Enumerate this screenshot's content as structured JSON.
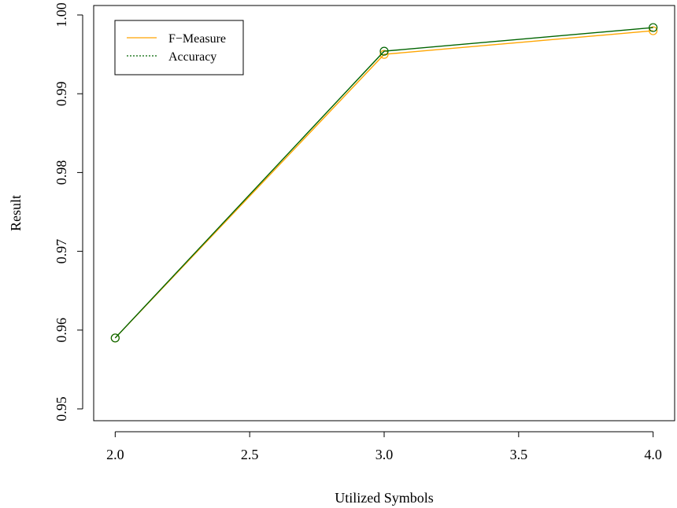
{
  "chart_data": {
    "type": "line",
    "title": "",
    "xlabel": "Utilized Symbols",
    "ylabel": "Result",
    "x": [
      2,
      3,
      4
    ],
    "xlim": [
      1.92,
      4.08
    ],
    "ylim": [
      0.9485,
      1.0012
    ],
    "xticks": [
      2.0,
      2.5,
      3.0,
      3.5,
      4.0
    ],
    "xtick_labels": [
      "2.0",
      "2.5",
      "3.0",
      "3.5",
      "4.0"
    ],
    "yticks": [
      0.95,
      0.96,
      0.97,
      0.98,
      0.99,
      1.0
    ],
    "ytick_labels": [
      "0.95",
      "0.96",
      "0.97",
      "0.98",
      "0.99",
      "1.00"
    ],
    "grid": false,
    "legend_position": "top-left",
    "series": [
      {
        "name": "F−Measure",
        "values": [
          0.959,
          0.995,
          0.998
        ],
        "color": "#FFA500",
        "line_style": "solid",
        "marker": "open-circle"
      },
      {
        "name": "Accuracy",
        "values": [
          0.959,
          0.9954,
          0.9984
        ],
        "color": "#006400",
        "line_style": "dotted",
        "marker": "open-circle"
      }
    ]
  }
}
